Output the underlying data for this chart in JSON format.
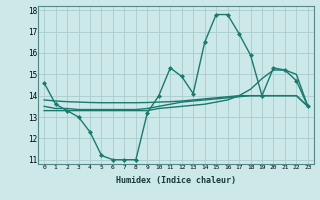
{
  "xlabel": "Humidex (Indice chaleur)",
  "bg_color": "#cce8e8",
  "grid_color": "#aacccc",
  "line_color": "#1a7a6e",
  "xlim": [
    -0.5,
    23.5
  ],
  "ylim": [
    10.8,
    18.2
  ],
  "yticks": [
    11,
    12,
    13,
    14,
    15,
    16,
    17,
    18
  ],
  "xticks": [
    0,
    1,
    2,
    3,
    4,
    5,
    6,
    7,
    8,
    9,
    10,
    11,
    12,
    13,
    14,
    15,
    16,
    17,
    18,
    19,
    20,
    21,
    22,
    23
  ],
  "series": [
    {
      "x": [
        0,
        1,
        2,
        3,
        4,
        5,
        6,
        7,
        8,
        9,
        10,
        11,
        12,
        13,
        14,
        15,
        16,
        17,
        18,
        19,
        20,
        21,
        22,
        23
      ],
      "y": [
        14.6,
        13.6,
        13.3,
        13.0,
        12.3,
        11.2,
        11.0,
        11.0,
        11.0,
        13.2,
        14.0,
        15.3,
        14.9,
        14.1,
        16.5,
        17.8,
        17.8,
        16.9,
        15.9,
        14.0,
        15.3,
        15.2,
        14.7,
        13.5
      ],
      "marker": "D",
      "markersize": 2.0,
      "linewidth": 1.0
    },
    {
      "x": [
        0,
        1,
        2,
        3,
        4,
        5,
        6,
        7,
        8,
        9,
        10,
        11,
        12,
        13,
        14,
        15,
        16,
        17,
        18,
        19,
        20,
        21,
        22,
        23
      ],
      "y": [
        13.5,
        13.4,
        13.4,
        13.35,
        13.35,
        13.35,
        13.35,
        13.35,
        13.35,
        13.4,
        13.5,
        13.6,
        13.7,
        13.75,
        13.8,
        13.85,
        13.9,
        13.95,
        14.0,
        14.0,
        14.0,
        14.0,
        14.0,
        13.5
      ],
      "marker": null,
      "markersize": 0,
      "linewidth": 1.0
    },
    {
      "x": [
        0,
        1,
        2,
        3,
        4,
        5,
        6,
        7,
        8,
        9,
        10,
        11,
        12,
        13,
        14,
        15,
        16,
        17,
        18,
        19,
        20,
        21,
        22,
        23
      ],
      "y": [
        13.8,
        13.75,
        13.72,
        13.7,
        13.68,
        13.67,
        13.67,
        13.67,
        13.67,
        13.68,
        13.7,
        13.72,
        13.75,
        13.8,
        13.85,
        13.9,
        13.95,
        14.0,
        14.0,
        14.0,
        14.0,
        14.0,
        14.0,
        13.5
      ],
      "marker": null,
      "markersize": 0,
      "linewidth": 1.0
    },
    {
      "x": [
        0,
        1,
        2,
        3,
        4,
        5,
        6,
        7,
        8,
        9,
        10,
        11,
        12,
        13,
        14,
        15,
        16,
        17,
        18,
        19,
        20,
        21,
        22,
        23
      ],
      "y": [
        13.3,
        13.3,
        13.3,
        13.3,
        13.3,
        13.3,
        13.3,
        13.3,
        13.3,
        13.3,
        13.4,
        13.45,
        13.5,
        13.55,
        13.6,
        13.7,
        13.8,
        14.0,
        14.3,
        14.8,
        15.2,
        15.2,
        15.0,
        13.5
      ],
      "marker": null,
      "markersize": 0,
      "linewidth": 1.0
    }
  ]
}
